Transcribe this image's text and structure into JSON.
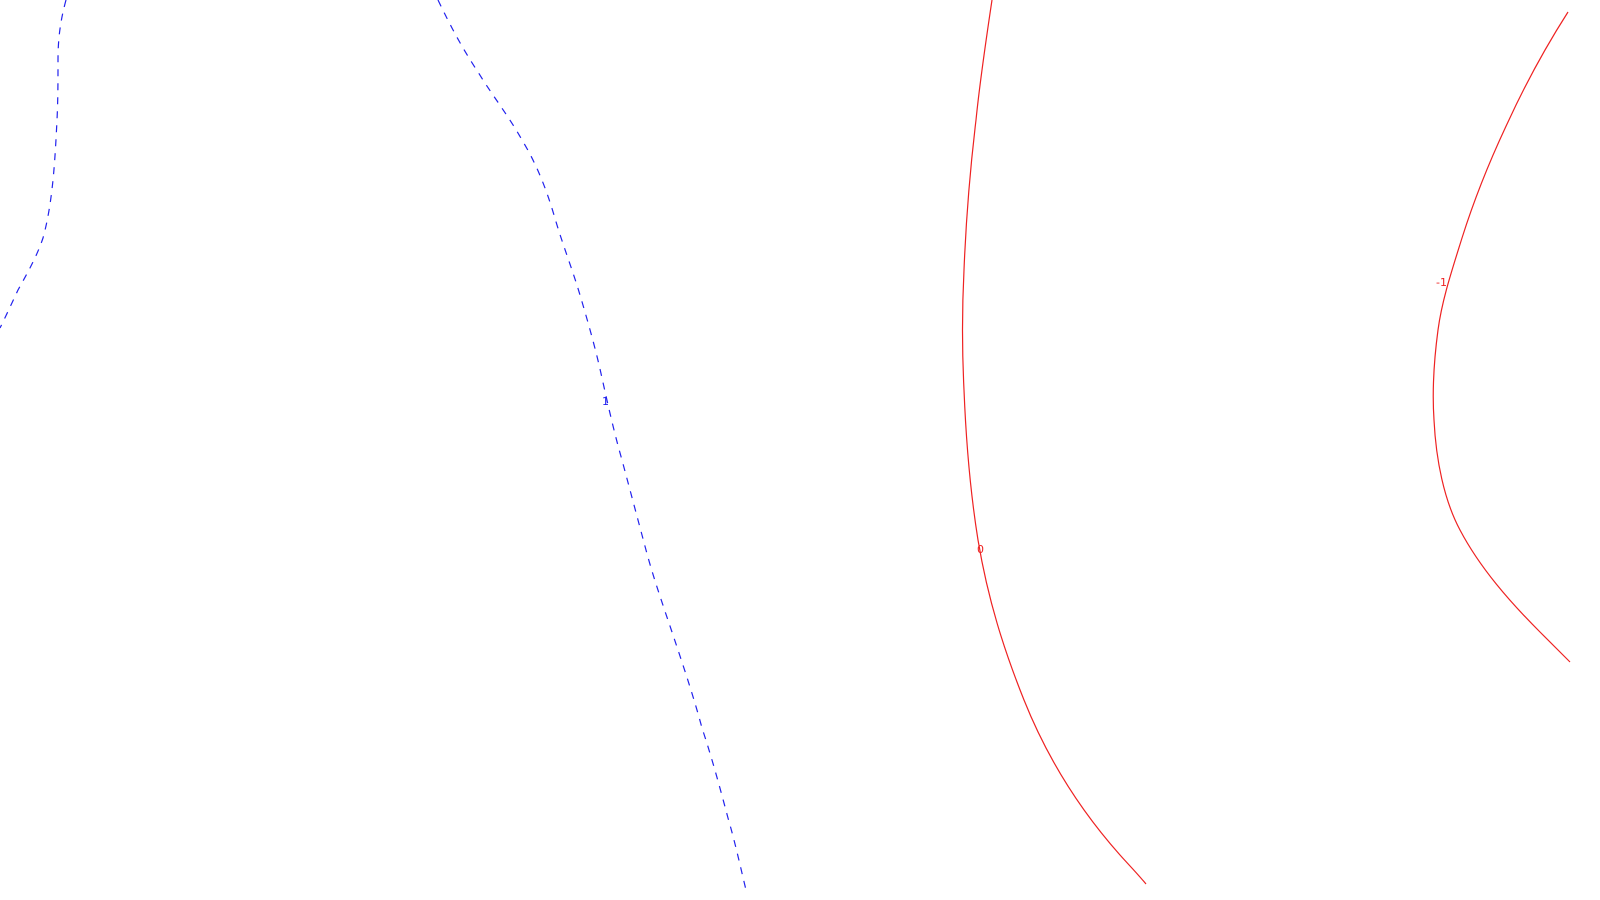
{
  "contours": [
    {
      "id": "dashed-left",
      "label": "",
      "color": "#2222ee",
      "style": "dashed"
    },
    {
      "id": "dashed-mid",
      "label": "1",
      "color": "#2222ee",
      "style": "dashed"
    },
    {
      "id": "solid-zero",
      "label": "0",
      "color": "#ee2222",
      "style": "solid"
    },
    {
      "id": "solid-right",
      "label": "-1",
      "color": "#ee2222",
      "style": "solid"
    }
  ]
}
